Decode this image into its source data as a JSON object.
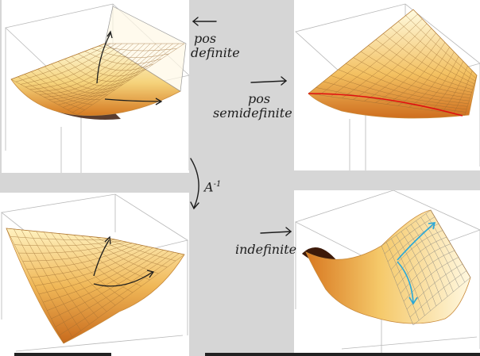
{
  "annotations": {
    "pos_definite": [
      "pos",
      "definite"
    ],
    "pos_semidefinite": [
      "pos",
      "semidefinite"
    ],
    "inverse": "A",
    "inverse_exp": "-1",
    "indefinite": "indefinite"
  },
  "colors": {
    "surface_light": "#fff6c8",
    "surface_mid": "#f3c060",
    "surface_dark": "#c86a1c",
    "shadow": "#3d1a0a",
    "mesh": "#9a6a30",
    "valley_curve": "#e01010",
    "saddle_arrow": "#2aa8d8",
    "ink": "#1d1d1d"
  },
  "icons": [
    "arrow-left-icon",
    "arrow-right-icon",
    "arrow-down-icon"
  ]
}
